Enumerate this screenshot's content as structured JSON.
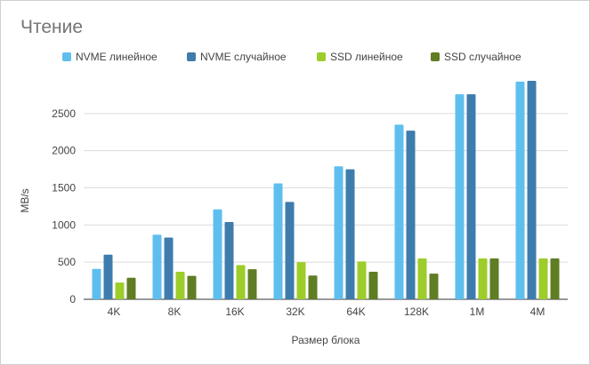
{
  "chart_data": {
    "type": "bar",
    "title": "Чтение",
    "xlabel": "Размер блока",
    "ylabel": "MB/s",
    "ylim": [
      0,
      3000
    ],
    "yticks": [
      0,
      500,
      1000,
      1500,
      2000,
      2500
    ],
    "grid": true,
    "legend_position": "top",
    "categories": [
      "4K",
      "8K",
      "16K",
      "32K",
      "64K",
      "128K",
      "1M",
      "4M"
    ],
    "series": [
      {
        "name": "NVME линейное",
        "color": "#5ebfef",
        "values": [
          410,
          870,
          1210,
          1560,
          1790,
          2350,
          2760,
          2930
        ]
      },
      {
        "name": "NVME случайное",
        "color": "#3e7cad",
        "values": [
          600,
          830,
          1040,
          1310,
          1750,
          2270,
          2760,
          2940
        ]
      },
      {
        "name": "SSD линейное",
        "color": "#9dcd2a",
        "values": [
          225,
          370,
          460,
          500,
          510,
          550,
          550,
          550
        ]
      },
      {
        "name": "SSD случайное",
        "color": "#5f7d23",
        "values": [
          290,
          315,
          405,
          320,
          370,
          345,
          550,
          550
        ]
      }
    ]
  }
}
